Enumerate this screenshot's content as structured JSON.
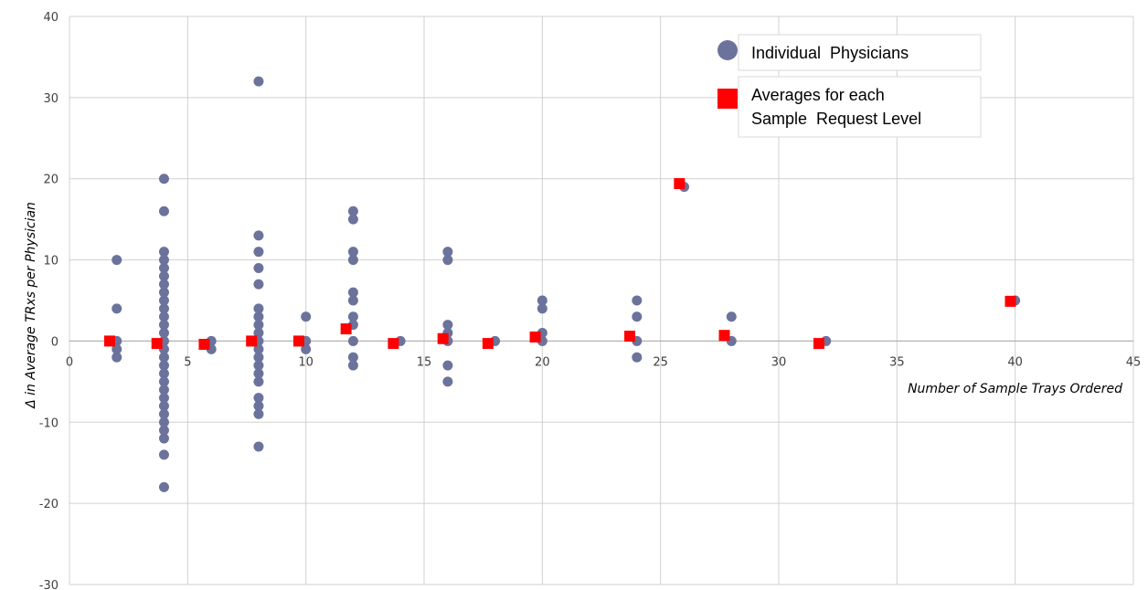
{
  "chart_data": {
    "type": "scatter",
    "xlabel": "Number of Sample Trays Ordered",
    "ylabel": "Δ in Average TRxs per Physician",
    "xlim": [
      0,
      45
    ],
    "ylim": [
      -30,
      40
    ],
    "x_ticks": [
      "0",
      "5",
      "10",
      "15",
      "20",
      "25",
      "30",
      "35",
      "40",
      "45"
    ],
    "y_ticks": [
      "40",
      "30",
      "20",
      "10",
      "0",
      "-10",
      "-20",
      "-30"
    ],
    "grid": true,
    "legend_position": "top-right",
    "series": [
      {
        "name": "Individual Physicians",
        "marker": "circle",
        "color": "#6b739c",
        "points": [
          [
            2,
            10
          ],
          [
            2,
            4
          ],
          [
            2,
            0
          ],
          [
            2,
            -1
          ],
          [
            2,
            -2
          ],
          [
            4,
            20
          ],
          [
            4,
            16
          ],
          [
            4,
            11
          ],
          [
            4,
            10
          ],
          [
            4,
            9
          ],
          [
            4,
            8
          ],
          [
            4,
            7
          ],
          [
            4,
            6
          ],
          [
            4,
            5
          ],
          [
            4,
            4
          ],
          [
            4,
            3
          ],
          [
            4,
            2
          ],
          [
            4,
            1
          ],
          [
            4,
            0
          ],
          [
            4,
            -1
          ],
          [
            4,
            -2
          ],
          [
            4,
            -3
          ],
          [
            4,
            -4
          ],
          [
            4,
            -5
          ],
          [
            4,
            -6
          ],
          [
            4,
            -7
          ],
          [
            4,
            -8
          ],
          [
            4,
            -9
          ],
          [
            4,
            -10
          ],
          [
            4,
            -11
          ],
          [
            4,
            -12
          ],
          [
            4,
            -14
          ],
          [
            4,
            -18
          ],
          [
            6,
            0
          ],
          [
            6,
            -1
          ],
          [
            8,
            32
          ],
          [
            8,
            13
          ],
          [
            8,
            11
          ],
          [
            8,
            9
          ],
          [
            8,
            7
          ],
          [
            8,
            4
          ],
          [
            8,
            3
          ],
          [
            8,
            2
          ],
          [
            8,
            1
          ],
          [
            8,
            0
          ],
          [
            8,
            -1
          ],
          [
            8,
            -2
          ],
          [
            8,
            -3
          ],
          [
            8,
            -4
          ],
          [
            8,
            -5
          ],
          [
            8,
            -7
          ],
          [
            8,
            -8
          ],
          [
            8,
            -9
          ],
          [
            8,
            -13
          ],
          [
            10,
            3
          ],
          [
            10,
            0
          ],
          [
            10,
            -1
          ],
          [
            12,
            16
          ],
          [
            12,
            15
          ],
          [
            12,
            11
          ],
          [
            12,
            10
          ],
          [
            12,
            6
          ],
          [
            12,
            5
          ],
          [
            12,
            3
          ],
          [
            12,
            2
          ],
          [
            12,
            0
          ],
          [
            12,
            -2
          ],
          [
            12,
            -3
          ],
          [
            14,
            0
          ],
          [
            16,
            11
          ],
          [
            16,
            10
          ],
          [
            16,
            2
          ],
          [
            16,
            1
          ],
          [
            16,
            0
          ],
          [
            16,
            -3
          ],
          [
            16,
            -5
          ],
          [
            18,
            0
          ],
          [
            20,
            5
          ],
          [
            20,
            4
          ],
          [
            20,
            1
          ],
          [
            20,
            0
          ],
          [
            24,
            5
          ],
          [
            24,
            3
          ],
          [
            24,
            0
          ],
          [
            24,
            -2
          ],
          [
            26,
            19
          ],
          [
            28,
            3
          ],
          [
            28,
            0
          ],
          [
            32,
            0
          ],
          [
            40,
            5
          ]
        ]
      },
      {
        "name": "Averages for each Sample Request Level",
        "marker": "square",
        "color": "#ff0000",
        "points": [
          [
            1.7,
            0
          ],
          [
            3.7,
            -0.3
          ],
          [
            5.7,
            -0.4
          ],
          [
            7.7,
            0
          ],
          [
            9.7,
            0
          ],
          [
            11.7,
            1.5
          ],
          [
            13.7,
            -0.3
          ],
          [
            15.8,
            0.3
          ],
          [
            17.7,
            -0.3
          ],
          [
            19.7,
            0.5
          ],
          [
            23.7,
            0.6
          ],
          [
            25.8,
            19.4
          ],
          [
            27.7,
            0.7
          ],
          [
            31.7,
            -0.3
          ],
          [
            39.8,
            4.9
          ]
        ]
      }
    ],
    "legend": {
      "item1": "Individual  Physicians",
      "item2_line1": "Averages for each",
      "item2_line2": "Sample  Request Level"
    }
  }
}
